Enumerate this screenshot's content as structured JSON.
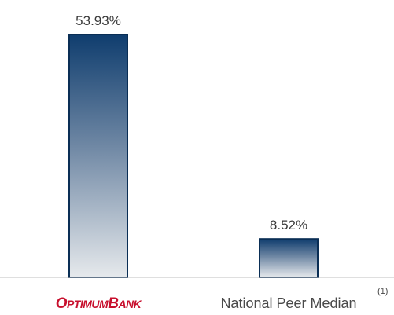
{
  "chart_data": {
    "type": "bar",
    "categories": [
      "OPTIMUMBANK",
      "National Peer Median"
    ],
    "values": [
      53.93,
      8.52
    ],
    "value_labels": [
      "53.93%",
      "8.52%"
    ],
    "unit": "%",
    "ylim": [
      0,
      60
    ],
    "grid": false,
    "legend": "none",
    "footnote": "(1)",
    "colors": {
      "bar_top": "#0f3d6e",
      "bar_bottom": "#e6e9ec",
      "bar_stroke": "#0a2e55",
      "baseline": "#bfbfbf",
      "brand": "#c8102e",
      "text": "#3a3a3a"
    }
  }
}
